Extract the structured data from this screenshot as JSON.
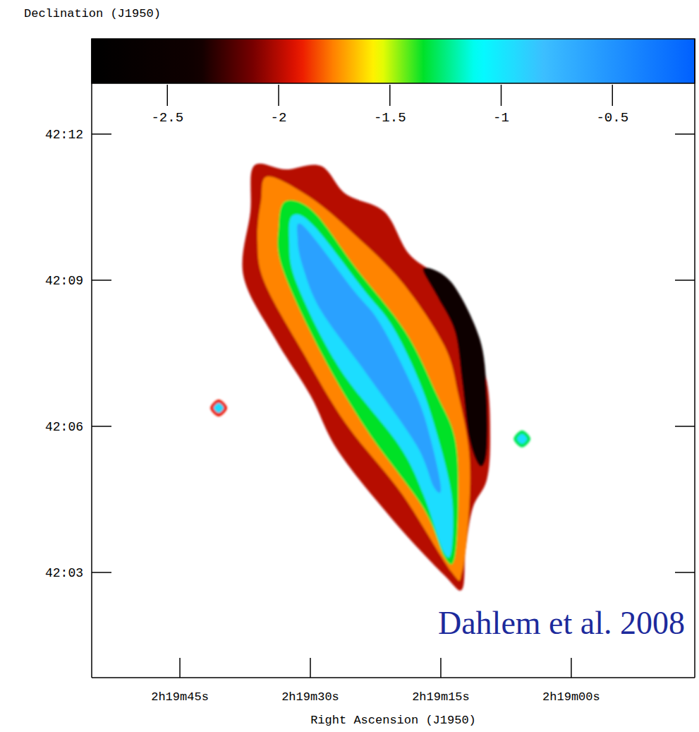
{
  "chart_data": {
    "type": "map",
    "y_label": "Declination (J1950)",
    "x_label": "Right Ascension (J1950)",
    "annotation": "Dahlem et al. 2008",
    "xlim": [
      55.14,
      -14.2
    ],
    "xticks": [
      {
        "value": 45,
        "label": "2h19m45s"
      },
      {
        "value": 30,
        "label": "2h19m30s"
      },
      {
        "value": 15,
        "label": "2h19m15s"
      },
      {
        "value": 0,
        "label": "2h19m00s"
      }
    ],
    "ylim": [
      42.014,
      42.2169
    ],
    "yticks": [
      {
        "value": 42.2,
        "label": "42:12"
      },
      {
        "value": 42.15,
        "label": "42:09"
      },
      {
        "value": 42.1,
        "label": "42:06"
      },
      {
        "value": 42.05,
        "label": "42:03"
      }
    ],
    "colorbar": {
      "range": [
        -2.84,
        -0.13
      ],
      "ticks": [
        -2.5,
        -2,
        -1.5,
        -1,
        -0.5
      ]
    },
    "regions": [
      {
        "value": -2.0,
        "points": [
          [
            36.49,
            42.1891
          ],
          [
            32.83,
            42.1879
          ],
          [
            28.78,
            42.1891
          ],
          [
            25.94,
            42.1795
          ],
          [
            21.48,
            42.1734
          ],
          [
            18.64,
            42.1589
          ],
          [
            14.59,
            42.1493
          ],
          [
            11.75,
            42.1324
          ],
          [
            9.72,
            42.1155
          ],
          [
            9.32,
            42.0961
          ],
          [
            9.72,
            42.0816
          ],
          [
            11.34,
            42.072
          ],
          [
            12.15,
            42.0575
          ],
          [
            12.56,
            42.0442
          ],
          [
            14.59,
            42.049
          ],
          [
            20.26,
            42.0671
          ],
          [
            26.75,
            42.0913
          ],
          [
            30.0,
            42.1106
          ],
          [
            34.05,
            42.13
          ],
          [
            37.7,
            42.1517
          ],
          [
            36.89,
            42.1734
          ]
        ]
      },
      {
        "value": -2.5,
        "points": [
          [
            17.02,
            42.1541
          ],
          [
            13.78,
            42.1493
          ],
          [
            10.53,
            42.13
          ],
          [
            9.72,
            42.1106
          ],
          [
            9.72,
            42.0913
          ],
          [
            10.53,
            42.0865
          ],
          [
            11.75,
            42.0961
          ],
          [
            12.56,
            42.1155
          ],
          [
            13.37,
            42.1324
          ],
          [
            15.4,
            42.1444
          ]
        ]
      },
      {
        "value": -1.75,
        "points": [
          [
            34.86,
            42.1855
          ],
          [
            30.0,
            42.1783
          ],
          [
            25.13,
            42.1662
          ],
          [
            19.45,
            42.1493
          ],
          [
            14.59,
            42.1275
          ],
          [
            12.97,
            42.1106
          ],
          [
            11.75,
            42.0913
          ],
          [
            11.75,
            42.072
          ],
          [
            12.56,
            42.0502
          ],
          [
            13.78,
            42.0502
          ],
          [
            19.45,
            42.0768
          ],
          [
            25.94,
            42.101
          ],
          [
            30.81,
            42.1251
          ],
          [
            35.27,
            42.1493
          ],
          [
            36.08,
            42.1638
          ],
          [
            35.67,
            42.1771
          ]
        ]
      },
      {
        "value": -1.35,
        "points": [
          [
            32.83,
            42.1771
          ],
          [
            29.59,
            42.1734
          ],
          [
            24.72,
            42.1541
          ],
          [
            19.05,
            42.1324
          ],
          [
            15.4,
            42.1106
          ],
          [
            13.37,
            42.0961
          ],
          [
            12.97,
            42.0768
          ],
          [
            13.37,
            42.0551
          ],
          [
            14.59,
            42.0551
          ],
          [
            17.02,
            42.072
          ],
          [
            23.51,
            42.0986
          ],
          [
            28.78,
            42.1251
          ],
          [
            33.24,
            42.1541
          ],
          [
            33.65,
            42.1686
          ]
        ]
      },
      {
        "value": -0.95,
        "points": [
          [
            32.02,
            42.1722
          ],
          [
            29.59,
            42.1686
          ],
          [
            23.91,
            42.1469
          ],
          [
            20.67,
            42.1348
          ],
          [
            17.83,
            42.1179
          ],
          [
            15.8,
            42.101
          ],
          [
            13.78,
            42.0768
          ],
          [
            13.78,
            42.0575
          ],
          [
            14.75,
            42.0575
          ],
          [
            17.02,
            42.0768
          ],
          [
            19.86,
            42.0937
          ],
          [
            26.75,
            42.1203
          ],
          [
            31.62,
            42.1493
          ],
          [
            32.43,
            42.1638
          ]
        ]
      },
      {
        "value": -0.6,
        "points": [
          [
            30.81,
            42.1686
          ],
          [
            25.13,
            42.1469
          ],
          [
            21.89,
            42.1348
          ],
          [
            17.83,
            42.1106
          ],
          [
            16.21,
            42.0961
          ],
          [
            14.99,
            42.0792
          ],
          [
            15.8,
            42.0792
          ],
          [
            17.83,
            42.0937
          ],
          [
            23.51,
            42.1179
          ],
          [
            28.78,
            42.1396
          ],
          [
            30.81,
            42.1541
          ],
          [
            31.46,
            42.1638
          ]
        ]
      },
      {
        "value": -1.9,
        "points": [
          [
            41.51,
            42.1063
          ],
          [
            40.54,
            42.1092
          ],
          [
            39.57,
            42.1063
          ],
          [
            40.54,
            42.1034
          ]
        ]
      },
      {
        "value": -0.95,
        "points": [
          [
            41.11,
            42.1063
          ],
          [
            40.54,
            42.108
          ],
          [
            39.97,
            42.1063
          ],
          [
            40.54,
            42.1046
          ]
        ]
      },
      {
        "value": -1.3,
        "points": [
          [
            6.63,
            42.0957
          ],
          [
            5.66,
            42.0986
          ],
          [
            4.69,
            42.0957
          ],
          [
            5.66,
            42.0928
          ]
        ]
      },
      {
        "value": -0.95,
        "points": [
          [
            6.23,
            42.0957
          ],
          [
            5.66,
            42.0974
          ],
          [
            5.09,
            42.0957
          ],
          [
            5.66,
            42.094
          ]
        ]
      }
    ]
  }
}
